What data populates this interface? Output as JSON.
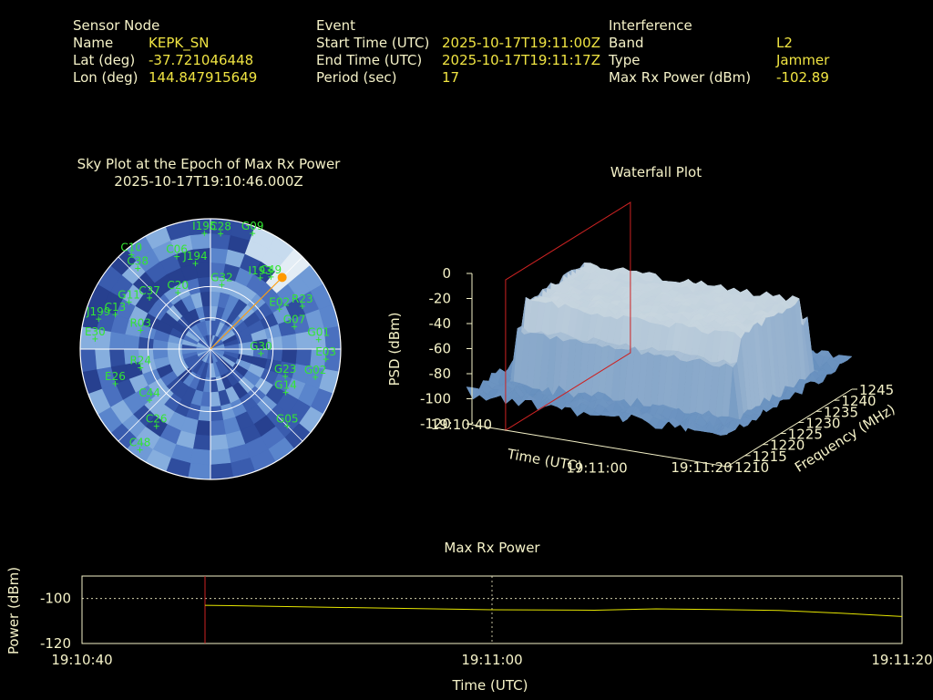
{
  "header": {
    "sensor": {
      "heading": "Sensor Node",
      "rows": [
        {
          "label": "Name",
          "value": "KEPK_SN"
        },
        {
          "label": "Lat (deg)",
          "value": "-37.721046448"
        },
        {
          "label": "Lon (deg)",
          "value": "144.847915649"
        }
      ]
    },
    "event": {
      "heading": "Event",
      "rows": [
        {
          "label": "Start Time (UTC)",
          "value": "2025-10-17T19:11:00Z"
        },
        {
          "label": "End Time (UTC)",
          "value": "2025-10-17T19:11:17Z"
        },
        {
          "label": "Period (sec)",
          "value": "17"
        }
      ]
    },
    "interference": {
      "heading": "Interference",
      "rows": [
        {
          "label": "Band",
          "value": "L2"
        },
        {
          "label": "Type",
          "value": "Jammer"
        },
        {
          "label": "Max Rx Power (dBm)",
          "value": "-102.89"
        }
      ]
    }
  },
  "colors": {
    "label": "#f5f2c8",
    "value": "#f0e442",
    "satellite": "#33e633",
    "marker": "#ff9900",
    "epoch_line": "#cc2222",
    "power_line": "#e6e600"
  },
  "chart_data": [
    {
      "type": "scatter",
      "kind": "polar-sky-plot",
      "title": "Sky Plot at the Epoch of Max Rx Power",
      "subtitle": "2025-10-17T19:10:46.000Z",
      "satellites": [
        {
          "name": "C10",
          "az": 320,
          "el": 5
        },
        {
          "name": "G09",
          "az": 20,
          "el": 5
        },
        {
          "name": "I195",
          "az": 357,
          "el": 10
        },
        {
          "name": "C28",
          "az": 5,
          "el": 10
        },
        {
          "name": "C38",
          "az": 318,
          "el": 15
        },
        {
          "name": "C06",
          "az": 340,
          "el": 22
        },
        {
          "name": "J194",
          "az": 350,
          "el": 30
        },
        {
          "name": "C49",
          "az": 40,
          "el": 25
        },
        {
          "name": "I193",
          "az": 35,
          "el": 30
        },
        {
          "name": "G11",
          "az": 300,
          "el": 25
        },
        {
          "name": "C13",
          "az": 290,
          "el": 20
        },
        {
          "name": "J199",
          "az": 285,
          "el": 10
        },
        {
          "name": "E30",
          "az": 275,
          "el": 10
        },
        {
          "name": "C37",
          "az": 310,
          "el": 35
        },
        {
          "name": "C20",
          "az": 330,
          "el": 45
        },
        {
          "name": "G32",
          "az": 10,
          "el": 45
        },
        {
          "name": "E02",
          "az": 60,
          "el": 35
        },
        {
          "name": "R23",
          "az": 65,
          "el": 20
        },
        {
          "name": "G07",
          "az": 75,
          "el": 30
        },
        {
          "name": "G01",
          "az": 85,
          "el": 15
        },
        {
          "name": "E03",
          "az": 95,
          "el": 10
        },
        {
          "name": "R03",
          "az": 285,
          "el": 40
        },
        {
          "name": "R24",
          "az": 255,
          "el": 40
        },
        {
          "name": "G30",
          "az": 95,
          "el": 55
        },
        {
          "name": "G23",
          "az": 110,
          "el": 35
        },
        {
          "name": "G02",
          "az": 105,
          "el": 15
        },
        {
          "name": "G14",
          "az": 120,
          "el": 30
        },
        {
          "name": "E26",
          "az": 250,
          "el": 20
        },
        {
          "name": "C44",
          "az": 230,
          "el": 35
        },
        {
          "name": "C26",
          "az": 215,
          "el": 25
        },
        {
          "name": "C48",
          "az": 215,
          "el": 5
        },
        {
          "name": "G05",
          "az": 135,
          "el": 15
        }
      ],
      "jammer_direction": {
        "az": 45,
        "el": 20
      }
    },
    {
      "type": "area",
      "kind": "3d-surface",
      "title": "Waterfall Plot",
      "xlabel": "Time (UTC)",
      "ylabel": "Frequency (MHz)",
      "zlabel": "PSD (dBm)",
      "x_ticks": [
        "19:10:40",
        "19:11:00",
        "19:11:20"
      ],
      "y_ticks": [
        1210,
        1215,
        1220,
        1225,
        1230,
        1235,
        1240,
        1245
      ],
      "z_ticks": [
        0,
        -20,
        -40,
        -60,
        -80,
        -100,
        -120
      ],
      "zlim": [
        -120,
        0
      ],
      "noise_floor_dbm": -95,
      "jam_level_dbm": -35,
      "jam_band_mhz": [
        1217,
        1238
      ],
      "epoch_plane_time": "19:10:46"
    },
    {
      "type": "line",
      "title": "Max Rx Power",
      "xlabel": "Time (UTC)",
      "ylabel": "Power (dBm)",
      "x_ticks": [
        "19:10:40",
        "19:11:00",
        "19:11:20"
      ],
      "y_ticks": [
        -100,
        -120
      ],
      "ylim": [
        -120,
        -90
      ],
      "xlim_sec": [
        0,
        40
      ],
      "marker_sec": 6,
      "series": [
        {
          "values_sec": [
            6,
            10,
            15,
            20,
            25,
            28,
            31,
            34,
            37,
            40
          ],
          "values": [
            -103,
            -103.6,
            -104.3,
            -105,
            -105.2,
            -104.6,
            -104.9,
            -105.3,
            -106.5,
            -108
          ]
        }
      ]
    }
  ]
}
